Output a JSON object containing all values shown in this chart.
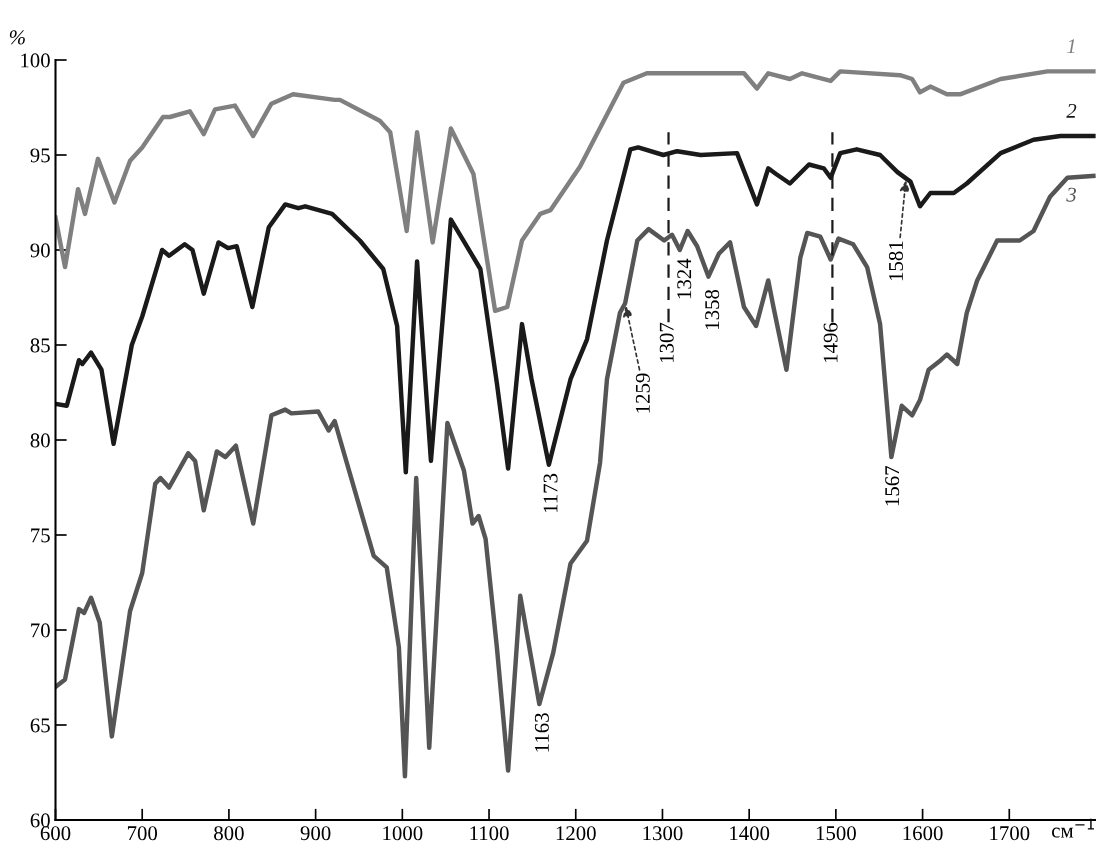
{
  "chart_data": {
    "type": "line",
    "ylabel": "%",
    "xlabel": "см$^{−1}$",
    "xlim": [
      600,
      1800
    ],
    "ylim": [
      60,
      100
    ],
    "xticks": [
      600,
      700,
      800,
      900,
      1000,
      1100,
      1200,
      1300,
      1400,
      1500,
      1600,
      1700
    ],
    "yticks": [
      60,
      65,
      70,
      75,
      80,
      85,
      90,
      95,
      100
    ],
    "grid": false,
    "legend": false,
    "marker": "none",
    "line_style": "solid",
    "series": [
      {
        "name": "1",
        "color": "#808080",
        "x": [
          600,
          611,
          626,
          634,
          649,
          668,
          686,
          700,
          724,
          732,
          755,
          771,
          784,
          807,
          828,
          849,
          874,
          922,
          928,
          974,
          986,
          1005,
          1017,
          1035,
          1056,
          1082,
          1107,
          1121,
          1138,
          1159,
          1171,
          1205,
          1255,
          1282,
          1344,
          1394,
          1409,
          1422,
          1447,
          1461,
          1494,
          1505,
          1574,
          1588,
          1597,
          1609,
          1628,
          1644,
          1690,
          1744,
          1797
        ],
        "values": [
          91.7,
          89.1,
          93.2,
          91.9,
          94.8,
          92.5,
          94.7,
          95.4,
          97.0,
          97.0,
          97.3,
          96.1,
          97.4,
          97.6,
          96.0,
          97.7,
          98.2,
          97.9,
          97.9,
          96.8,
          96.2,
          91.0,
          96.2,
          90.4,
          96.4,
          94.0,
          86.8,
          87.0,
          90.5,
          91.9,
          92.1,
          94.4,
          98.8,
          99.3,
          99.3,
          99.3,
          98.5,
          99.3,
          99.0,
          99.3,
          98.9,
          99.4,
          99.2,
          99.0,
          98.3,
          98.6,
          98.2,
          98.2,
          99.0,
          99.4,
          99.4
        ]
      },
      {
        "name": "2",
        "color": "#1a1a1a",
        "x": [
          600,
          613,
          627,
          631,
          641,
          653,
          667,
          688,
          700,
          723,
          731,
          749,
          758,
          771,
          788,
          799,
          809,
          827,
          846,
          865,
          880,
          888,
          919,
          951,
          978,
          994,
          1004,
          1017,
          1033,
          1056,
          1090,
          1109,
          1122,
          1138,
          1149,
          1169,
          1194,
          1213,
          1236,
          1263,
          1272,
          1301,
          1317,
          1344,
          1386,
          1409,
          1422,
          1431,
          1447,
          1469,
          1486,
          1494,
          1505,
          1524,
          1551,
          1571,
          1586,
          1597,
          1609,
          1636,
          1651,
          1690,
          1728,
          1759,
          1797
        ],
        "values": [
          81.9,
          81.8,
          84.2,
          84.0,
          84.6,
          83.7,
          79.8,
          85.0,
          86.5,
          90.0,
          89.7,
          90.3,
          90.0,
          87.7,
          90.4,
          90.1,
          90.2,
          87.0,
          91.2,
          92.4,
          92.2,
          92.3,
          91.9,
          90.5,
          89.0,
          86.0,
          78.3,
          89.4,
          78.9,
          91.6,
          89.0,
          83.0,
          78.5,
          86.1,
          83.2,
          78.7,
          83.2,
          85.3,
          90.5,
          95.3,
          95.4,
          95.0,
          95.2,
          95.0,
          95.1,
          92.4,
          94.3,
          94.0,
          93.5,
          94.5,
          94.3,
          93.8,
          95.1,
          95.3,
          95.0,
          94.1,
          93.6,
          92.3,
          93.0,
          93.0,
          93.5,
          95.1,
          95.8,
          96.0,
          96.0
        ]
      },
      {
        "name": "3",
        "color": "#555555",
        "x": [
          600,
          611,
          627,
          633,
          641,
          651,
          665,
          686,
          700,
          715,
          721,
          731,
          753,
          761,
          771,
          786,
          796,
          808,
          828,
          849,
          865,
          872,
          903,
          915,
          922,
          967,
          982,
          996,
          1003,
          1016,
          1031,
          1052,
          1071,
          1081,
          1088,
          1096,
          1109,
          1122,
          1136,
          1158,
          1174,
          1194,
          1213,
          1228,
          1236,
          1251,
          1257,
          1271,
          1284,
          1302,
          1311,
          1320,
          1329,
          1340,
          1353,
          1365,
          1378,
          1394,
          1408,
          1422,
          1428,
          1443,
          1459,
          1467,
          1482,
          1494,
          1503,
          1520,
          1536,
          1551,
          1564,
          1576,
          1588,
          1597,
          1607,
          1621,
          1628,
          1640,
          1651,
          1663,
          1686,
          1712,
          1728,
          1747,
          1767,
          1797
        ],
        "values": [
          67.0,
          67.4,
          71.1,
          70.9,
          71.7,
          70.4,
          64.4,
          71.0,
          73.0,
          77.7,
          78.0,
          77.5,
          79.3,
          78.9,
          76.3,
          79.4,
          79.1,
          79.7,
          75.6,
          81.3,
          81.6,
          81.4,
          81.5,
          80.5,
          81.0,
          73.9,
          73.3,
          69.1,
          62.3,
          78.0,
          63.8,
          80.9,
          78.4,
          75.6,
          76.0,
          74.8,
          69.1,
          62.6,
          71.8,
          66.1,
          68.8,
          73.5,
          74.7,
          78.8,
          83.2,
          86.7,
          87.2,
          90.5,
          91.1,
          90.5,
          90.8,
          90.0,
          91.0,
          90.2,
          88.6,
          89.8,
          90.4,
          87.0,
          86.0,
          88.4,
          87.0,
          83.7,
          89.6,
          90.9,
          90.7,
          89.5,
          90.6,
          90.3,
          89.1,
          86.1,
          79.1,
          81.8,
          81.3,
          82.1,
          83.7,
          84.2,
          84.5,
          84.0,
          86.7,
          88.4,
          90.5,
          90.5,
          91.0,
          92.8,
          93.8,
          93.9
        ]
      }
    ],
    "ref_lines": [
      {
        "axis": "x",
        "value": 1307,
        "label": "1307",
        "line_style": "dashed",
        "color": "#1a1a1a"
      },
      {
        "axis": "x",
        "value": 1496,
        "label": "1496",
        "line_style": "dashed",
        "color": "#1a1a1a"
      }
    ],
    "annotations": [
      {
        "text": "1173",
        "x": 1173,
        "y": 78.7
      },
      {
        "text": "1163",
        "x": 1163,
        "y": 66.1
      },
      {
        "text": "1259",
        "x": 1257,
        "y": 87.2
      },
      {
        "text": "1324",
        "x": 1324,
        "y": 90.0
      },
      {
        "text": "1358",
        "x": 1353,
        "y": 88.6
      },
      {
        "text": "1567",
        "x": 1567,
        "y": 79.1
      },
      {
        "text": "1581",
        "x": 1581,
        "y": 93.8
      }
    ]
  }
}
